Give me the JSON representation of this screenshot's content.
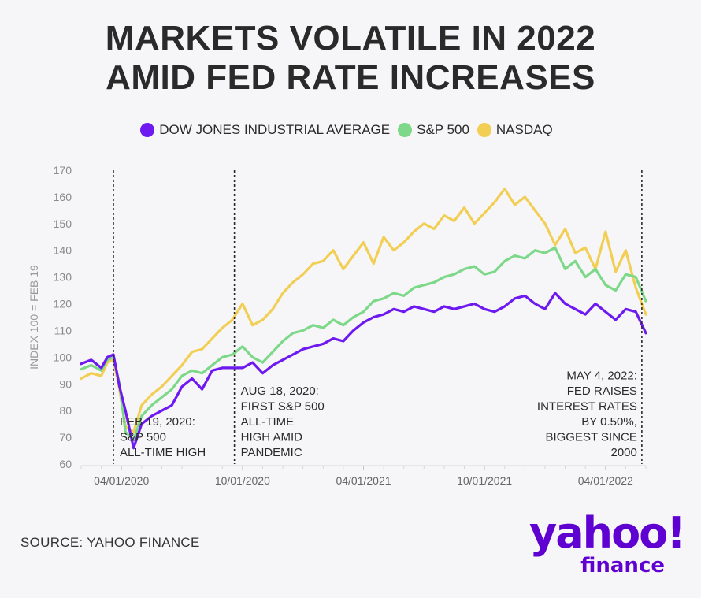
{
  "title_line1": "MARKETS VOLATILE IN 2022",
  "title_line2": "AMID FED RATE INCREASES",
  "source": "SOURCE: YAHOO FINANCE",
  "logo": {
    "brand": "yahoo!",
    "sub": "finance"
  },
  "colors": {
    "dow": "#6d19f0",
    "sp500": "#7dd889",
    "nasdaq": "#f2cf54",
    "text": "#2a2a2a",
    "axis": "#9a9a9a"
  },
  "chart_data": {
    "type": "line",
    "title": "MARKETS VOLATILE IN 2022 AMID FED RATE INCREASES",
    "xlabel": "",
    "ylabel": "INDEX 100 = FEB 19",
    "ylim": [
      60,
      170
    ],
    "yticks": [
      60,
      70,
      80,
      90,
      100,
      110,
      120,
      130,
      140,
      150,
      160,
      170
    ],
    "xlim": [
      0,
      28
    ],
    "xticks": [
      {
        "x": 2,
        "label": "04/01/2020"
      },
      {
        "x": 8,
        "label": "10/01/2020"
      },
      {
        "x": 14,
        "label": "04/01/2021"
      },
      {
        "x": 20,
        "label": "10/01/2021"
      },
      {
        "x": 26,
        "label": "04/01/2022"
      }
    ],
    "legend": "top",
    "series": [
      {
        "name": "DOW JONES INDUSTRIAL AVERAGE",
        "key": "dow",
        "x": [
          0,
          0.5,
          1.0,
          1.3,
          1.6,
          1.9,
          2.2,
          2.6,
          3.0,
          3.5,
          4.0,
          4.5,
          5.0,
          5.5,
          6.0,
          6.5,
          7.0,
          7.5,
          8.0,
          8.5,
          9.0,
          9.5,
          10.0,
          10.5,
          11.0,
          11.5,
          12.0,
          12.5,
          13.0,
          13.5,
          14.0,
          14.5,
          15.0,
          15.5,
          16.0,
          16.5,
          17.0,
          17.5,
          18.0,
          18.5,
          19.0,
          19.5,
          20.0,
          20.5,
          21.0,
          21.5,
          22.0,
          22.5,
          23.0,
          23.5,
          24.0,
          24.5,
          25.0,
          25.5,
          26.0,
          26.5,
          27.0,
          27.5,
          28.0
        ],
        "values": [
          97.5,
          99,
          96,
          100,
          101,
          89,
          80,
          66,
          75,
          78,
          80,
          82,
          89,
          92,
          88,
          95,
          96,
          96,
          96,
          98,
          94,
          97,
          99,
          101,
          103,
          104,
          105,
          107,
          106,
          110,
          113,
          115,
          116,
          118,
          117,
          119,
          118,
          117,
          119,
          118,
          119,
          120,
          118,
          117,
          119,
          122,
          123,
          120,
          118,
          124,
          120,
          118,
          116,
          120,
          117,
          114,
          118,
          117,
          109
        ]
      },
      {
        "name": "S&P 500",
        "key": "sp500",
        "x": [
          0,
          0.5,
          1.0,
          1.3,
          1.6,
          1.9,
          2.2,
          2.6,
          3.0,
          3.5,
          4.0,
          4.5,
          5.0,
          5.5,
          6.0,
          6.5,
          7.0,
          7.5,
          8.0,
          8.5,
          9.0,
          9.5,
          10.0,
          10.5,
          11.0,
          11.5,
          12.0,
          12.5,
          13.0,
          13.5,
          14.0,
          14.5,
          15.0,
          15.5,
          16.0,
          16.5,
          17.0,
          17.5,
          18.0,
          18.5,
          19.0,
          19.5,
          20.0,
          20.5,
          21.0,
          21.5,
          22.0,
          22.5,
          23.0,
          23.5,
          24.0,
          24.5,
          25.0,
          25.5,
          26.0,
          26.5,
          27.0,
          27.5,
          28.0
        ],
        "values": [
          95.5,
          97,
          95,
          99,
          100,
          90,
          72,
          69,
          78,
          82,
          85,
          88,
          93,
          95,
          94,
          97,
          100,
          101,
          104,
          100,
          98,
          102,
          106,
          109,
          110,
          112,
          111,
          114,
          112,
          115,
          117,
          121,
          122,
          124,
          123,
          126,
          127,
          128,
          130,
          131,
          133,
          134,
          131,
          132,
          136,
          138,
          137,
          140,
          139,
          141,
          133,
          136,
          130,
          133,
          127,
          125,
          131,
          130,
          121
        ]
      },
      {
        "name": "NASDAQ",
        "key": "nasdaq",
        "x": [
          0,
          0.5,
          1.0,
          1.3,
          1.6,
          1.9,
          2.2,
          2.6,
          3.0,
          3.5,
          4.0,
          4.5,
          5.0,
          5.5,
          6.0,
          6.5,
          7.0,
          7.5,
          8.0,
          8.5,
          9.0,
          9.5,
          10.0,
          10.5,
          11.0,
          11.5,
          12.0,
          12.5,
          13.0,
          13.5,
          14.0,
          14.5,
          15.0,
          15.5,
          16.0,
          16.5,
          17.0,
          17.5,
          18.0,
          18.5,
          19.0,
          19.5,
          20.0,
          20.5,
          21.0,
          21.5,
          22.0,
          22.5,
          23.0,
          23.5,
          24.0,
          24.5,
          25.0,
          25.5,
          26.0,
          26.5,
          27.0,
          27.5,
          28.0
        ],
        "values": [
          92,
          94,
          93,
          98,
          99,
          88,
          74,
          72,
          82,
          86,
          89,
          93,
          97,
          102,
          103,
          107,
          111,
          114,
          120,
          112,
          114,
          118,
          124,
          128,
          131,
          135,
          136,
          140,
          133,
          138,
          143,
          135,
          145,
          140,
          143,
          147,
          150,
          148,
          153,
          151,
          156,
          150,
          154,
          158,
          163,
          157,
          160,
          155,
          150,
          142,
          148,
          139,
          141,
          133,
          147,
          132,
          140,
          126,
          116
        ]
      }
    ],
    "annotations": [
      {
        "x": 1.6,
        "lines": [
          "FEB 19, 2020:",
          "S&P 500",
          "ALL-TIME HIGH"
        ],
        "align": "left"
      },
      {
        "x": 7.6,
        "lines": [
          "AUG 18, 2020:",
          "FIRST S&P 500",
          "ALL-TIME",
          "HIGH AMID",
          "PANDEMIC"
        ],
        "align": "left"
      },
      {
        "x": 27.8,
        "lines": [
          "MAY 4, 2022:",
          "FED RAISES",
          "INTEREST RATES",
          "BY 0.50%,",
          "BIGGEST SINCE",
          "2000"
        ],
        "align": "right"
      }
    ]
  }
}
